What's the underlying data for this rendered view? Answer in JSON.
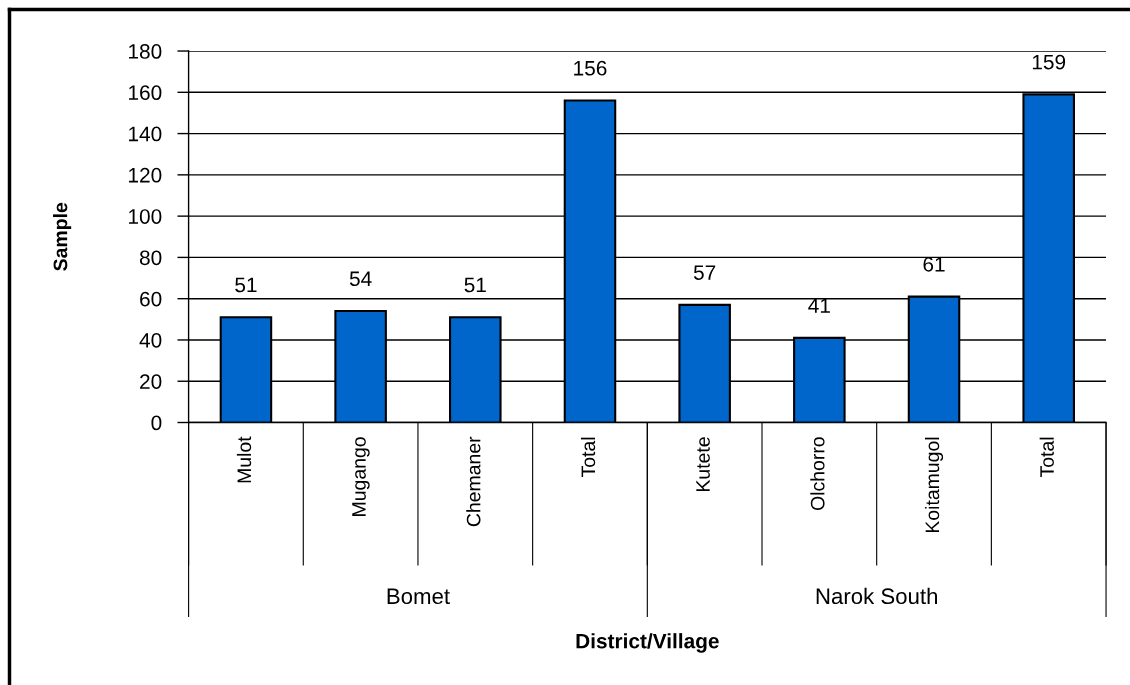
{
  "chart_data": {
    "type": "bar",
    "xlabel": "District/Village",
    "ylabel": "Sample",
    "categories": [
      "Mulot",
      "Mugango",
      "Chemaner",
      "Total",
      "Kutete",
      "Olchorro",
      "Koitamugol",
      "Total"
    ],
    "values": [
      51,
      54,
      51,
      156,
      57,
      41,
      61,
      159
    ],
    "color": "#0066cc",
    "ylim": [
      0,
      180
    ],
    "yticks": [
      0,
      20,
      40,
      60,
      80,
      100,
      120,
      140,
      160,
      180
    ],
    "grid": "y",
    "data_labels": true,
    "annotations": [
      "Bomet",
      "Narok South"
    ]
  }
}
